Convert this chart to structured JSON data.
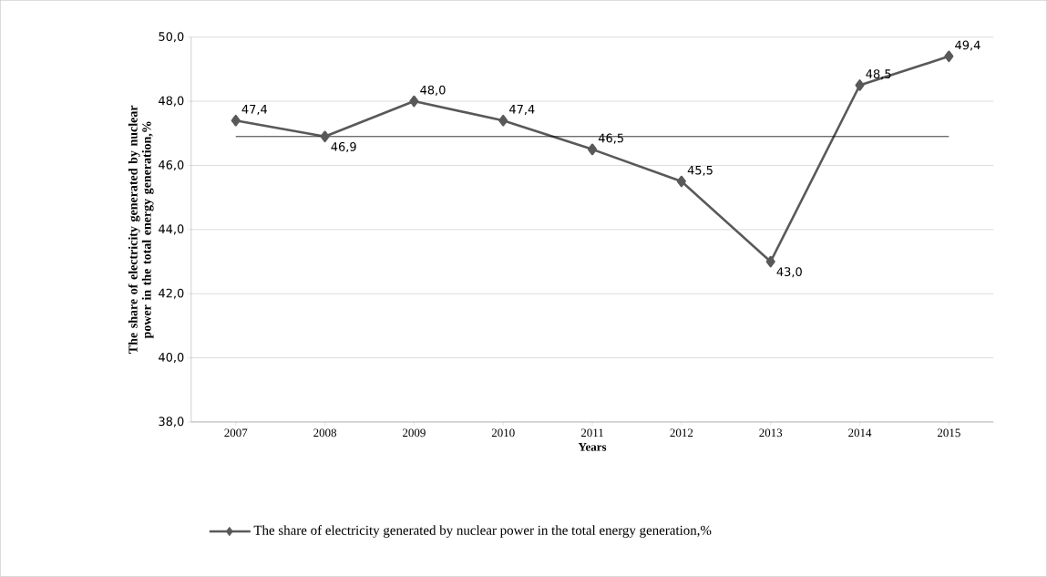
{
  "chart_data": {
    "type": "line",
    "xlabel": "Years",
    "ylabel": "The share of electricity generated by nuclear power in the total energy generation,%",
    "categories": [
      "2007",
      "2008",
      "2009",
      "2010",
      "2011",
      "2012",
      "2013",
      "2014",
      "2015"
    ],
    "series": [
      {
        "name": "The share of electricity generated by nuclear power in the total energy generation,%",
        "color": "#595959",
        "values": [
          47.4,
          46.9,
          48.0,
          47.4,
          46.5,
          45.5,
          43.0,
          48.5,
          49.4
        ],
        "value_labels": [
          "47,4",
          "46,9",
          "48,0",
          "47,4",
          "46,5",
          "45,5",
          "43,0",
          "48,5",
          "49,4"
        ],
        "marker": "diamond"
      }
    ],
    "ref_lines": [
      {
        "axis": "y",
        "value": 46.9,
        "color": "#000000"
      }
    ],
    "ylim": [
      38,
      50
    ],
    "yticks": [
      {
        "value": 38,
        "label": "38,0"
      },
      {
        "value": 40,
        "label": "40,0"
      },
      {
        "value": 42,
        "label": "42,0"
      },
      {
        "value": 44,
        "label": "44,0"
      },
      {
        "value": 46,
        "label": "46,0"
      },
      {
        "value": 48,
        "label": "48,0"
      },
      {
        "value": 50,
        "label": "50,0"
      }
    ],
    "grid": "y",
    "legend": "bottom"
  }
}
